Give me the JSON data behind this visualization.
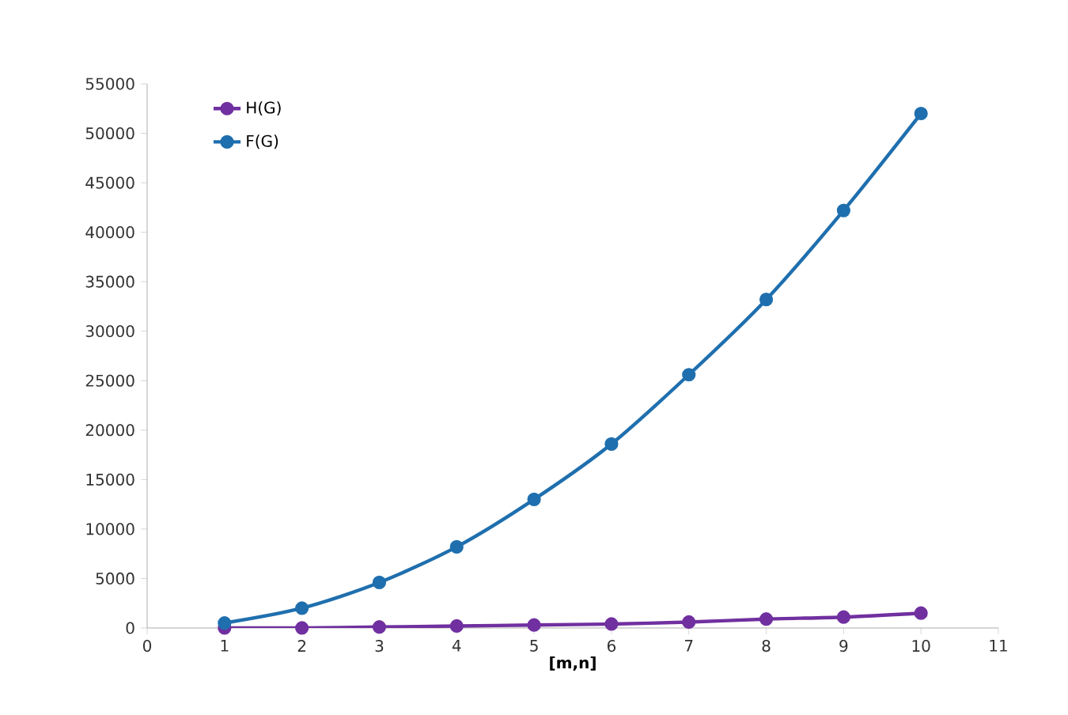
{
  "chart_data": {
    "type": "line",
    "xlabel": "[m,n]",
    "x": [
      1,
      2,
      3,
      4,
      5,
      6,
      7,
      8,
      9,
      10
    ],
    "series": [
      {
        "name": "H(G)",
        "color": "#7030a0",
        "values": [
          0,
          0,
          100,
          200,
          300,
          400,
          600,
          900,
          1100,
          1500
        ]
      },
      {
        "name": "F(G)",
        "color": "#1f6fae",
        "values": [
          500,
          2000,
          4600,
          8200,
          13000,
          18600,
          25600,
          33200,
          42200,
          52000
        ]
      }
    ],
    "xlim": [
      0,
      11
    ],
    "xticks": [
      0,
      1,
      2,
      3,
      4,
      5,
      6,
      7,
      8,
      9,
      10,
      11
    ],
    "ylim": [
      0,
      55000
    ],
    "yticks": [
      0,
      5000,
      10000,
      15000,
      20000,
      25000,
      30000,
      35000,
      40000,
      45000,
      50000,
      55000
    ],
    "grid": false,
    "legend": "top left",
    "marker": "circle",
    "line_style": "solid"
  }
}
